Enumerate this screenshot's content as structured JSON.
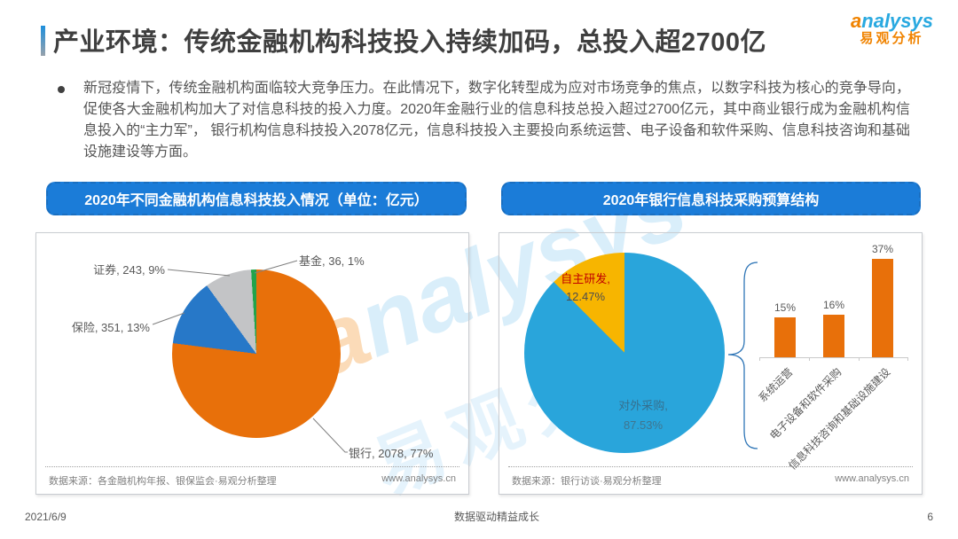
{
  "header": {
    "title": "产业环境：传统金融机构科技投入持续加码，总投入超2700亿",
    "logo": {
      "en": "analysys",
      "cn": "易观分析"
    }
  },
  "bullet_paragraph": "新冠疫情下，传统金融机构面临较大竞争压力。在此情况下，数字化转型成为应对市场竞争的焦点，以数字科技为核心的竞争导向，促使各大金融机构加大了对信息科技的投入力度。2020年金融行业的信息科技总投入超过2700亿元，其中商业银行成为金融机构信息投入的“主力军”， 银行机构信息科技投入2078亿元，信息科技投入主要投向系统运营、电子设备和软件采购、信息科技咨询和基础设施建设等方面。",
  "panels": {
    "left": {
      "header": "2020年不同金融机构信息科技投入情况（单位：亿元）",
      "source": "数据来源：各金融机构年报、银保监会·易观分析整理",
      "site": "www.analysys.cn"
    },
    "right": {
      "header": "2020年银行信息科技采购预算结构",
      "source": "数据来源：银行访谈·易观分析整理",
      "site": "www.analysys.cn"
    }
  },
  "chart_data": [
    {
      "type": "pie",
      "title": "2020年不同金融机构信息科技投入情况",
      "unit": "亿元",
      "slices": [
        {
          "label": "银行",
          "value": 2078,
          "pct": 77,
          "color": "#E8700A"
        },
        {
          "label": "保险",
          "value": 351,
          "pct": 13,
          "color": "#2778C8"
        },
        {
          "label": "证券",
          "value": 243,
          "pct": 9,
          "color": "#C3C4C6"
        },
        {
          "label": "基金",
          "value": 36,
          "pct": 1,
          "color": "#22A34B"
        }
      ]
    },
    {
      "type": "pie",
      "title": "2020年银行信息科技采购预算结构",
      "slices": [
        {
          "label": "对外采购",
          "pct": 87.53,
          "color": "#29A5DB",
          "label_color": "#35708f",
          "pct_color": "#3f758f"
        },
        {
          "label": "自主研发",
          "pct": 12.47,
          "color": "#F7B500",
          "label_color": "#C00000",
          "pct_color": "#4d4d4d"
        }
      ]
    },
    {
      "type": "bar",
      "title": "2020年银行信息科技采购预算结构",
      "categories": [
        "系统运营",
        "电子设备和软件采购",
        "信息科技咨询和基础设施建设"
      ],
      "values": [
        15,
        16,
        37
      ],
      "unit": "%",
      "ylim": [
        0,
        45
      ],
      "color": "#E8700A"
    }
  ],
  "footer": {
    "date": "2021/6/9",
    "slogan": "数据驱动精益成长",
    "page": "6"
  },
  "watermark": {
    "en": "analysys",
    "cn": "易观分析"
  }
}
